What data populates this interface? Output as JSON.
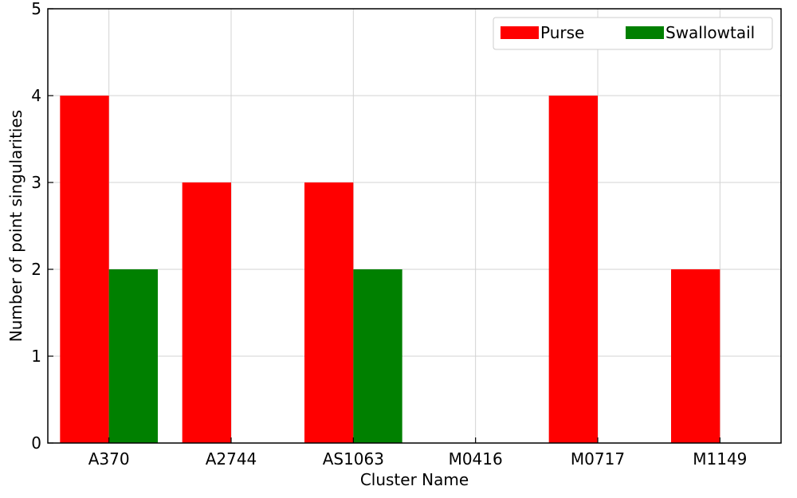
{
  "chart_data": {
    "type": "bar",
    "title": "",
    "xlabel": "Cluster Name",
    "ylabel": "Number of point singularities",
    "categories": [
      "A370",
      "A2744",
      "AS1063",
      "M0416",
      "M0717",
      "M1149"
    ],
    "series": [
      {
        "name": "Purse",
        "values": [
          4,
          3,
          3,
          0,
          4,
          2
        ],
        "color": "#ff0000"
      },
      {
        "name": "Swallowtail",
        "values": [
          2,
          0,
          2,
          0,
          0,
          0
        ],
        "color": "#008000"
      }
    ],
    "ylim": [
      0,
      5
    ],
    "yticks": [
      0,
      1,
      2,
      3,
      4,
      5
    ],
    "grid": true,
    "legend": {
      "placement": "top-right",
      "columns": 2
    }
  }
}
